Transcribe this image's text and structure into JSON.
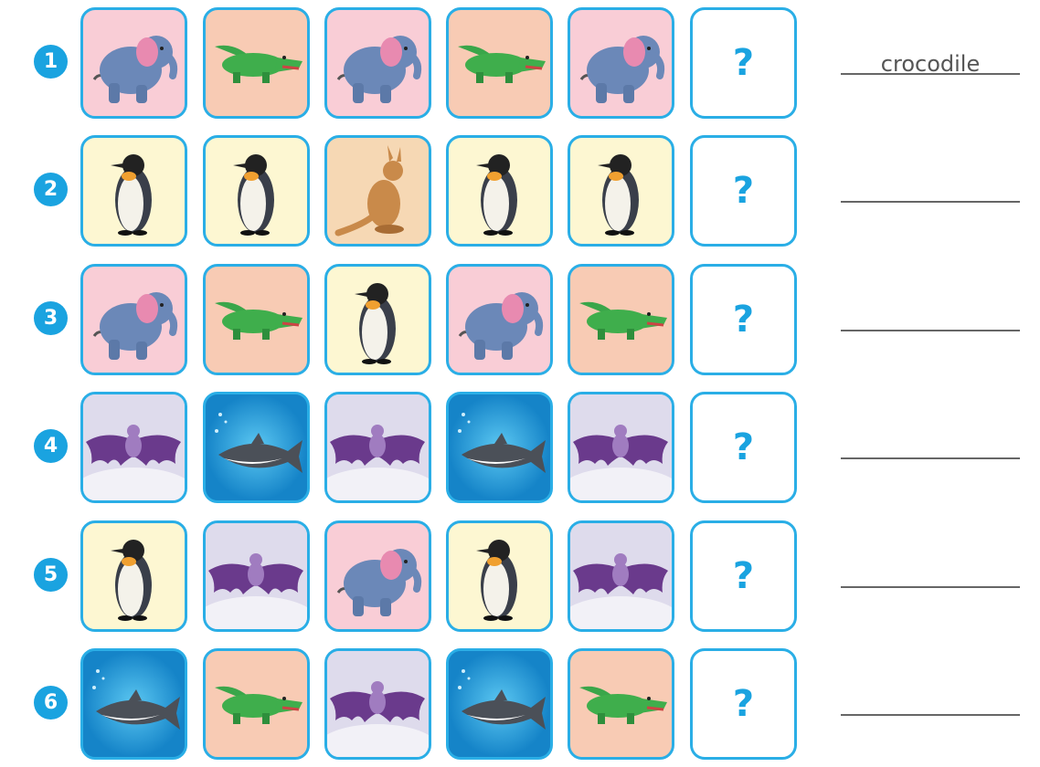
{
  "colors": {
    "accent": "#1aa3e0",
    "elephant": "#f9cdd6",
    "crocodile": "#f8cbb4",
    "penguin": "#fdf7d2",
    "kangaroo": "#f6d8b4",
    "bat": "#dedbec",
    "shark": "#1b9ad6"
  },
  "question_mark": "?",
  "rows": [
    {
      "number": "1",
      "sequence": [
        "elephant",
        "crocodile",
        "elephant",
        "crocodile",
        "elephant"
      ],
      "answer": "crocodile"
    },
    {
      "number": "2",
      "sequence": [
        "penguin",
        "penguin",
        "kangaroo",
        "penguin",
        "penguin"
      ],
      "answer": ""
    },
    {
      "number": "3",
      "sequence": [
        "elephant",
        "crocodile",
        "penguin",
        "elephant",
        "crocodile"
      ],
      "answer": ""
    },
    {
      "number": "4",
      "sequence": [
        "bat",
        "shark",
        "bat",
        "shark",
        "bat"
      ],
      "answer": ""
    },
    {
      "number": "5",
      "sequence": [
        "penguin",
        "bat",
        "elephant",
        "penguin",
        "bat"
      ],
      "answer": ""
    },
    {
      "number": "6",
      "sequence": [
        "shark",
        "crocodile",
        "bat",
        "shark",
        "crocodile"
      ],
      "answer": ""
    }
  ]
}
